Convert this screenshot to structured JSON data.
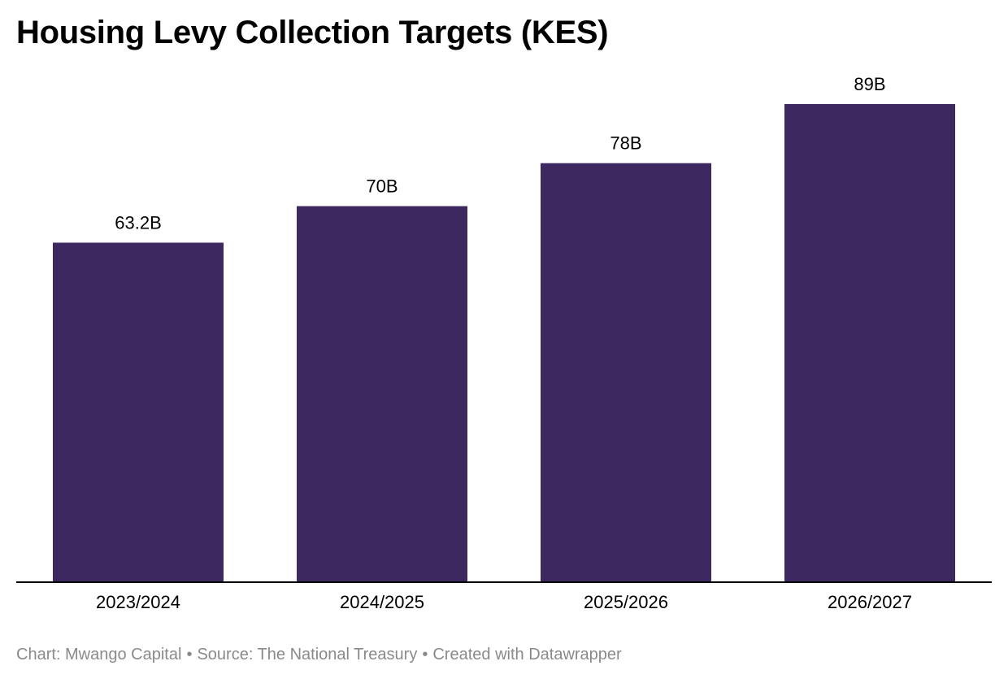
{
  "title": "Housing Levy Collection Targets (KES)",
  "footer": {
    "chart_by": "Chart: Mwango Capital",
    "source": "Source: The National Treasury",
    "created_with": "Created with Datawrapper",
    "separator": "•"
  },
  "colors": {
    "bar": "#3d2960",
    "axis": "#000000",
    "text": "#000000",
    "footer": "#8a8a8a"
  },
  "chart_data": {
    "type": "bar",
    "title": "Housing Levy Collection Targets (KES)",
    "categories": [
      "2023/2024",
      "2024/2025",
      "2025/2026",
      "2026/2027"
    ],
    "values": [
      63.2,
      70,
      78,
      89
    ],
    "value_labels": [
      "63.2B",
      "70B",
      "78B",
      "89B"
    ],
    "unit": "B",
    "ylim": [
      0,
      89
    ],
    "grid": false,
    "legend": "none"
  }
}
